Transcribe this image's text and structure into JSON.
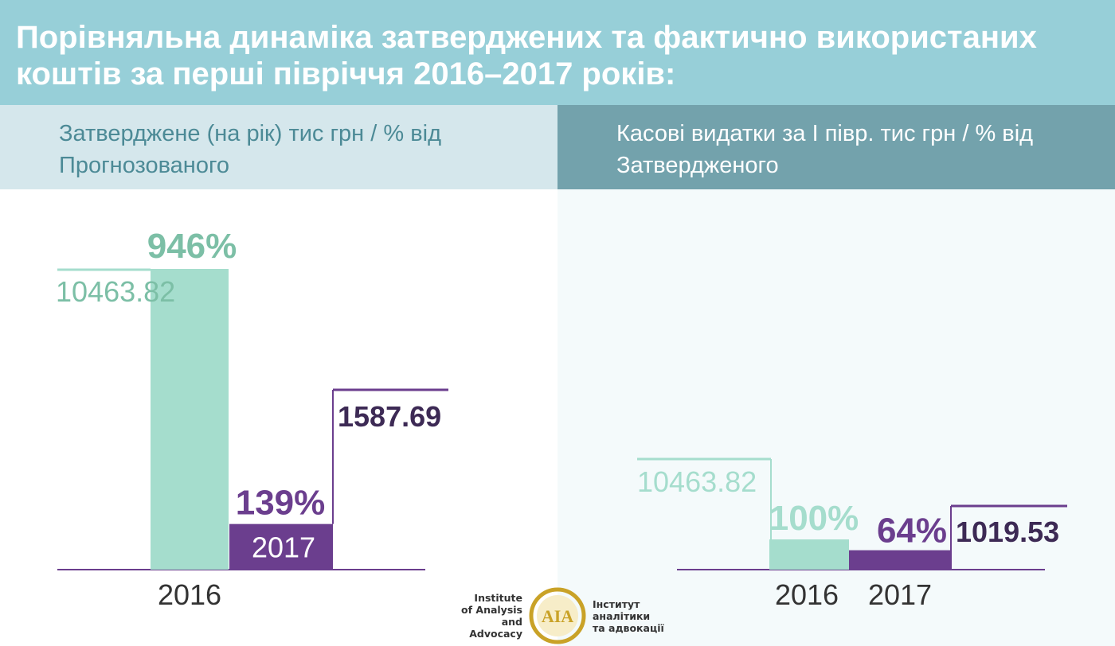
{
  "header": {
    "title": "Порівняльна динаміка затверджених та фактично використаних коштів за перші півріччя 2016–2017 років:"
  },
  "left_panel": {
    "subtitle": "Затверджене (на рік) тис грн / % від Прогнозованого"
  },
  "right_panel": {
    "subtitle": "Касові видатки за І півр. тис грн / % від Затвердженого"
  },
  "chart_data": [
    {
      "type": "bar",
      "categories": [
        "2016",
        "2017"
      ],
      "series": [
        {
          "values": [
            10463.82,
            1587.69
          ]
        }
      ],
      "percent_labels": [
        "946%",
        "139%"
      ],
      "value_labels": [
        "10463.82",
        "1587.69"
      ],
      "title": "",
      "xlabel": "",
      "ylabel": "",
      "colors": [
        "#a5ddcd",
        "#6b3e8e"
      ]
    },
    {
      "type": "bar",
      "categories": [
        "2016",
        "2017"
      ],
      "series": [
        {
          "values": [
            10463.82,
            1019.53
          ]
        }
      ],
      "percent_labels": [
        "100%",
        "64%"
      ],
      "value_labels": [
        "10463.82",
        "1019.53"
      ],
      "title": "",
      "xlabel": "",
      "ylabel": "",
      "colors": [
        "#a5ddcd",
        "#6b3e8e"
      ]
    }
  ],
  "logo": {
    "en_line1": "Institute",
    "en_line2": "of Analysis",
    "en_line3": "and Advocacy",
    "ua_line1": "Інститут",
    "ua_line2": "аналітики",
    "ua_line3": "та адвокації",
    "mark": "AIA"
  },
  "colors": {
    "header_bg": "#97cfd8",
    "subheader_left_bg": "#d5e7ec",
    "subheader_right_bg": "#73a2ac",
    "mint": "#a5ddcd",
    "purple": "#6b3e8e",
    "gold": "#c9a227"
  }
}
